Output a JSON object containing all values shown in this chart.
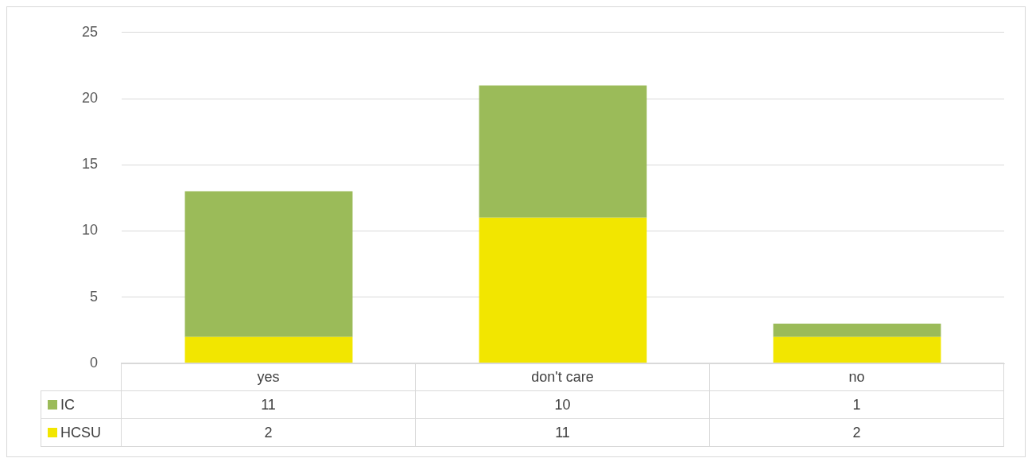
{
  "chart_data": {
    "type": "bar",
    "stacked": true,
    "categories": [
      "yes",
      "don't care",
      "no"
    ],
    "series": [
      {
        "name": "HCSU",
        "color": "#f2e600",
        "values": [
          2,
          11,
          2
        ]
      },
      {
        "name": "IC",
        "color": "#9bbb59",
        "values": [
          11,
          10,
          1
        ]
      }
    ],
    "ylim": [
      0,
      25
    ],
    "yticks": [
      0,
      5,
      10,
      15,
      20,
      25
    ],
    "grid": "y",
    "data_labels": true,
    "legend": "bottom left"
  }
}
